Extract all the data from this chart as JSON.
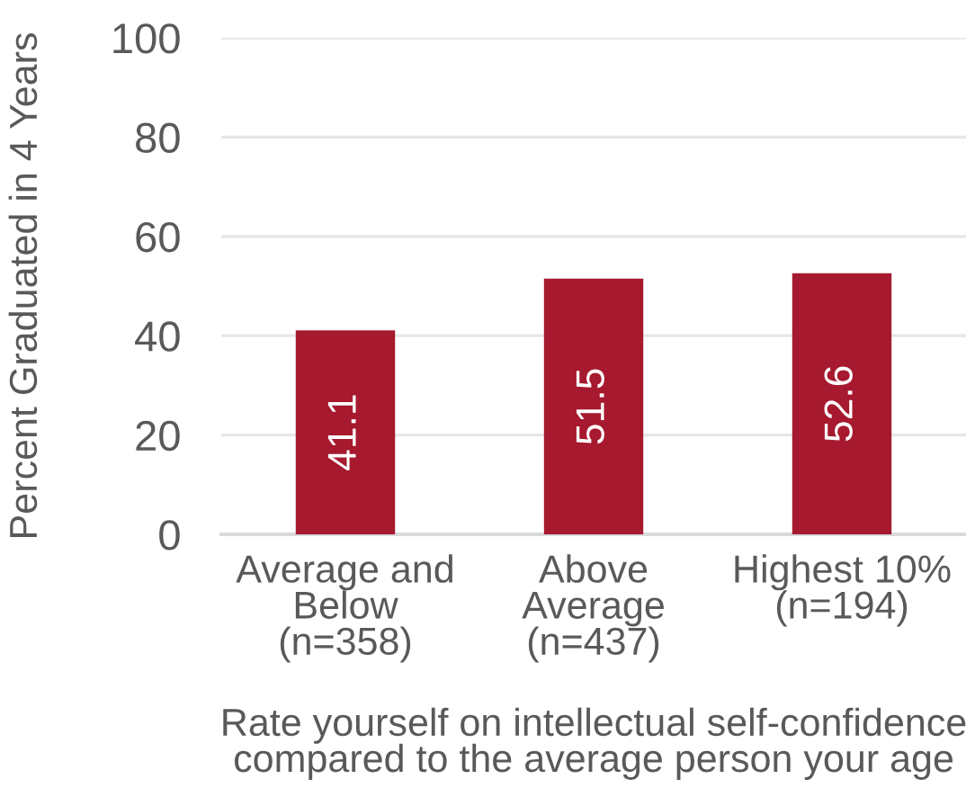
{
  "chart_data": {
    "type": "bar",
    "xlabel": "Rate yourself on intellectual self-confidence\ncompared to the average person your age",
    "ylabel": "Percent Graduated in 4 Years",
    "categories": [
      "Average and\nBelow\n(n=358)",
      "Above\nAverage\n(n=437)",
      "Highest 10%\n(n=194)"
    ],
    "values": [
      41.1,
      51.5,
      52.6
    ],
    "color": "#a6192e",
    "ylim": [
      0,
      100
    ],
    "yticks": [
      0,
      20,
      40,
      60,
      80,
      100
    ],
    "grid": "y",
    "data_labels": true
  }
}
